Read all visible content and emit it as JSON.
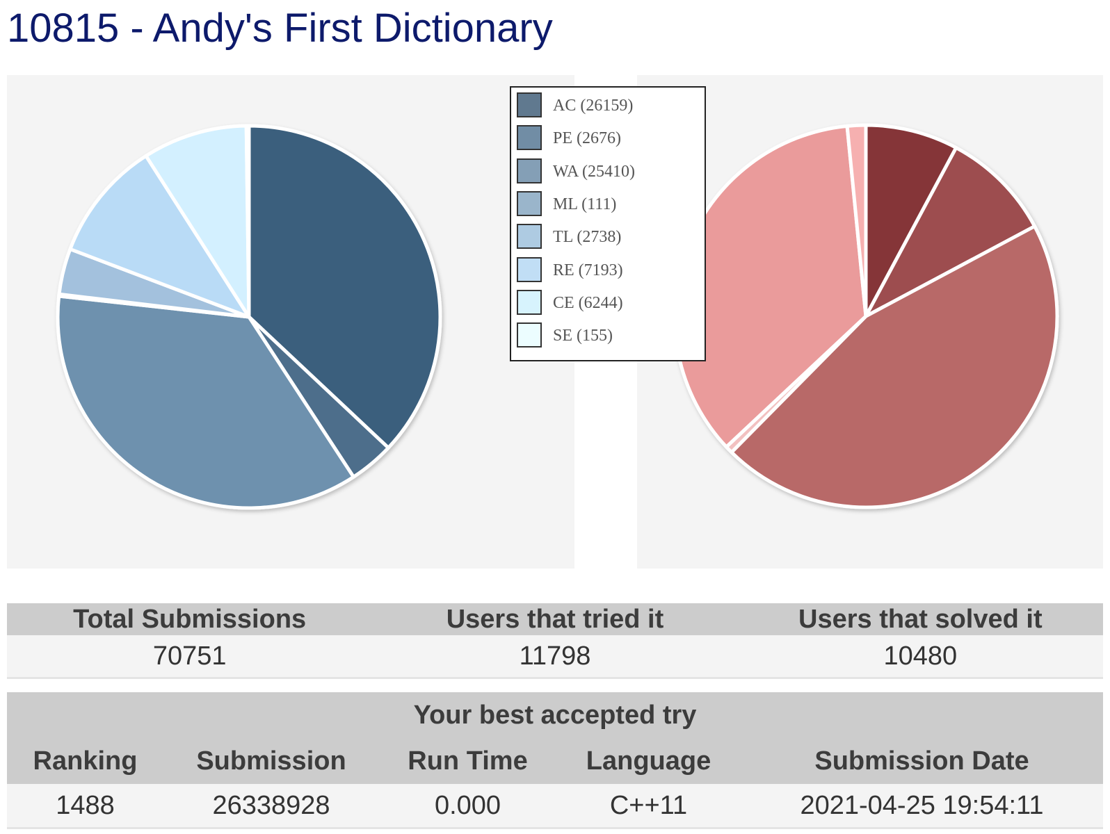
{
  "page": {
    "title": "10815 - Andy's First Dictionary"
  },
  "chart_data": [
    {
      "type": "pie",
      "title": "",
      "legend_position": "top-right",
      "series": [
        {
          "label": "AC (26159)",
          "name": "AC",
          "value": 26159,
          "color": "#3b5f7d"
        },
        {
          "label": "PE (2676)",
          "name": "PE",
          "value": 2676,
          "color": "#4d6e8b"
        },
        {
          "label": "WA (25410)",
          "name": "WA",
          "value": 25410,
          "color": "#6e91ae"
        },
        {
          "label": "ML (111)",
          "name": "ML",
          "value": 111,
          "color": "#88a9c4"
        },
        {
          "label": "TL (2738)",
          "name": "TL",
          "value": 2738,
          "color": "#a3c1dd"
        },
        {
          "label": "RE (7193)",
          "name": "RE",
          "value": 7193,
          "color": "#b9dbf6"
        },
        {
          "label": "CE (6244)",
          "name": "CE",
          "value": 6244,
          "color": "#d3f0ff"
        },
        {
          "label": "SE (155)",
          "name": "SE",
          "value": 155,
          "color": "#ecfdff"
        }
      ],
      "legend_swatch_colors": [
        "#60798f",
        "#718da5",
        "#849fb6",
        "#9ab5cb",
        "#aecbe2",
        "#c1def5",
        "#d7f3fd",
        "#ecfdff"
      ]
    },
    {
      "type": "pie",
      "title": "",
      "slices": [
        {
          "value": 1,
          "color": "#853437"
        },
        {
          "value": 1.2,
          "color": "#9d4d4f"
        },
        {
          "value": 5.78,
          "color": "#b86968"
        },
        {
          "value": 0.08,
          "color": "#f2c1c1"
        },
        {
          "value": 4.53,
          "color": "#ea9b9b"
        },
        {
          "value": 0.2,
          "color": "#f6b0b0"
        }
      ]
    }
  ],
  "totals": {
    "headers": [
      "Total Submissions",
      "Users that tried it",
      "Users that solved it"
    ],
    "values": [
      "70751",
      "11798",
      "10480"
    ]
  },
  "best_try": {
    "caption": "Your best accepted try",
    "headers": [
      "Ranking",
      "Submission",
      "Run Time",
      "Language",
      "Submission Date"
    ],
    "values": [
      "1488",
      "26338928",
      "0.000",
      "C++11",
      "2021-04-25 19:54:11"
    ]
  }
}
